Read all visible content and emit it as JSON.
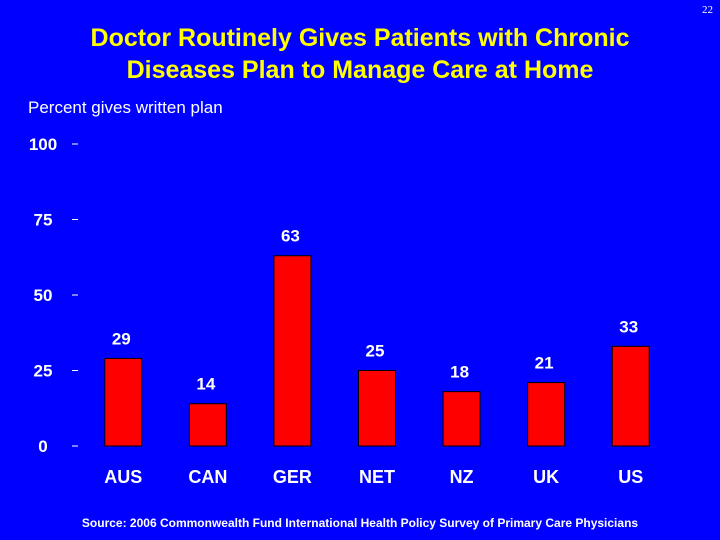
{
  "slide": {
    "page_number": "22",
    "source": "Source: 2006 Commonwealth Fund International Health Policy Survey of Primary Care Physicians"
  },
  "colors": {
    "background": "#0000FF",
    "title": "#FFFF00",
    "bar": "#FF0000",
    "text": "#FFFFFF"
  },
  "chart_data": {
    "type": "bar",
    "title_line1": "Doctor Routinely Gives Patients with Chronic",
    "title_line2": "Diseases Plan to Manage Care at Home",
    "ylabel": "Percent gives written plan",
    "xlabel": "",
    "categories": [
      "AUS",
      "CAN",
      "GER",
      "NET",
      "NZ",
      "UK",
      "US"
    ],
    "values": [
      29,
      14,
      63,
      25,
      18,
      21,
      33
    ],
    "data_labels": [
      "29",
      "14",
      "63",
      "25",
      "18",
      "21",
      "33"
    ],
    "ylim": [
      0,
      100
    ],
    "yticks": [
      {
        "value": 0,
        "label": "0"
      },
      {
        "value": 25,
        "label": "25"
      },
      {
        "value": 50,
        "label": "50"
      },
      {
        "value": 75,
        "label": "75"
      },
      {
        "value": 100,
        "label": "100"
      }
    ],
    "grid": false,
    "legend": "none"
  }
}
